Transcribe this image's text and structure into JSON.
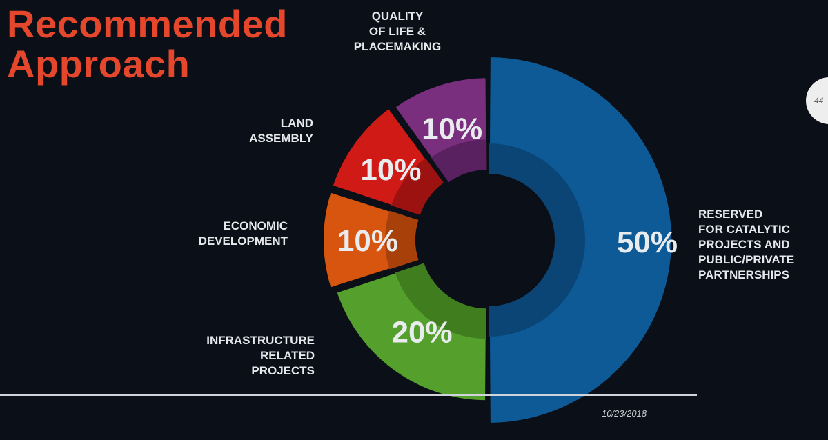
{
  "title": {
    "line1": "Recommended",
    "line2": "Approach"
  },
  "page_number": "44",
  "date": "10/23/2018",
  "chart_data": {
    "type": "pie",
    "variant": "donut",
    "categories": [
      "RESERVED FOR CATALYTIC PROJECTS AND PUBLIC/PRIVATE PARTNERSHIPS",
      "INFRASTRUCTURE RELATED PROJECTS",
      "ECONOMIC DEVELOPMENT",
      "LAND ASSEMBLY",
      "QUALITY OF LIFE & PLACEMAKING"
    ],
    "values": [
      50,
      20,
      10,
      10,
      10
    ],
    "value_labels": [
      "50%",
      "20%",
      "10%",
      "10%",
      "10%"
    ],
    "category_label_lines": [
      [
        "RESERVED",
        "FOR CATALYTIC",
        "PROJECTS AND",
        "PUBLIC/PRIVATE",
        "PARTNERSHIPS"
      ],
      [
        "INFRASTRUCTURE",
        "RELATED",
        "PROJECTS"
      ],
      [
        "ECONOMIC",
        "DEVELOPMENT"
      ],
      [
        "LAND",
        "ASSEMBLY"
      ],
      [
        "QUALITY",
        "OF LIFE &",
        "PLACEMAKING"
      ]
    ],
    "colors": [
      "#0d5a96",
      "#55a02c",
      "#d7550f",
      "#d01a16",
      "#7a2f7e"
    ],
    "inner_colors": [
      "#0a4575",
      "#3f7d1f",
      "#a8400a",
      "#9c1210",
      "#5a2160"
    ]
  }
}
